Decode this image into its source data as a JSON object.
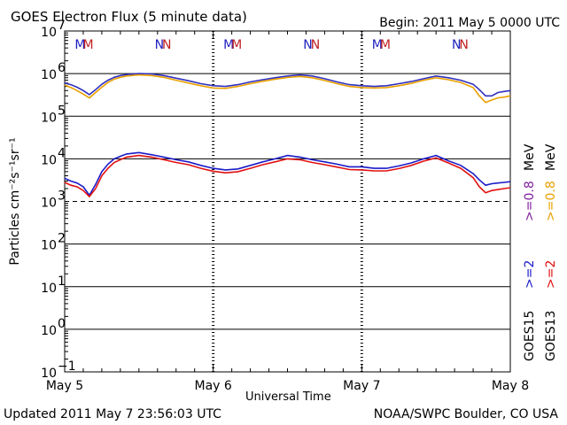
{
  "header": {
    "title": "GOES Electron Flux (5 minute data)",
    "begin": "Begin: 2011 May 5 0000 UTC"
  },
  "footer": {
    "updated": "Updated 2011 May  7 23:56:03 UTC",
    "credit": "NOAA/SWPC Boulder, CO USA"
  },
  "chart_data": {
    "type": "line",
    "title": "GOES Electron Flux (5 minute data)",
    "xlabel": "Universal Time",
    "ylabel": "Particles cm⁻²s⁻¹sr⁻¹",
    "yscale": "log",
    "ylim": [
      0.1,
      10000000
    ],
    "xlim_hours": [
      0,
      72
    ],
    "x_tick_labels": [
      "May 5",
      "May 6",
      "May 7",
      "May 8"
    ],
    "y_ticks": [
      {
        "base": "10",
        "exp": "7"
      },
      {
        "base": "10",
        "exp": "6"
      },
      {
        "base": "10",
        "exp": "5"
      },
      {
        "base": "10",
        "exp": "4"
      },
      {
        "base": "10",
        "exp": "3"
      },
      {
        "base": "10",
        "exp": "2"
      },
      {
        "base": "10",
        "exp": "1"
      },
      {
        "base": "10",
        "exp": "0"
      },
      {
        "base": "10",
        "exp": "−1"
      }
    ],
    "threshold_level": 1000,
    "markers": [
      {
        "label": "M",
        "hour": 2.5,
        "color": "#2020c0"
      },
      {
        "label": "M",
        "hour": 3.8,
        "color": "#c02020"
      },
      {
        "label": "N",
        "hour": 15.3,
        "color": "#2020c0"
      },
      {
        "label": "N",
        "hour": 16.5,
        "color": "#c02020"
      },
      {
        "label": "M",
        "hour": 26.5,
        "color": "#2020c0"
      },
      {
        "label": "M",
        "hour": 27.8,
        "color": "#c02020"
      },
      {
        "label": "N",
        "hour": 39.3,
        "color": "#2020c0"
      },
      {
        "label": "N",
        "hour": 40.5,
        "color": "#c02020"
      },
      {
        "label": "M",
        "hour": 50.5,
        "color": "#2020c0"
      },
      {
        "label": "M",
        "hour": 51.8,
        "color": "#c02020"
      },
      {
        "label": "N",
        "hour": 63.3,
        "color": "#2020c0"
      },
      {
        "label": "N",
        "hour": 64.5,
        "color": "#c02020"
      }
    ],
    "legend": [
      {
        "sat": "GOES15",
        "energy": ">=2",
        "unit": "",
        "color": "#1a1ac8"
      },
      {
        "sat": "",
        "energy": ">=0.8",
        "unit": "MeV",
        "color": "#8020a0"
      },
      {
        "sat": "GOES13",
        "energy": ">=2",
        "unit": "",
        "color": "#e01010"
      },
      {
        "sat": "",
        "energy": ">=0.8",
        "unit": "MeV",
        "color": "#e8a000"
      }
    ],
    "series": [
      {
        "name": "GOES15 >=0.8 MeV",
        "color": "#3030c0",
        "x": [
          0,
          1,
          2,
          3,
          4,
          5,
          6,
          7,
          8,
          9,
          10,
          12,
          14,
          16,
          18,
          20,
          22,
          24,
          26,
          28,
          30,
          32,
          34,
          36,
          38,
          40,
          42,
          44,
          46,
          48,
          50,
          52,
          54,
          56,
          58,
          60,
          62,
          64,
          66,
          67,
          68,
          69,
          70,
          71,
          72
        ],
        "y": [
          600000,
          550000,
          480000,
          400000,
          320000,
          420000,
          560000,
          700000,
          820000,
          900000,
          950000,
          1000000,
          980000,
          900000,
          780000,
          680000,
          580000,
          520000,
          500000,
          550000,
          640000,
          720000,
          800000,
          880000,
          930000,
          880000,
          760000,
          640000,
          550000,
          520000,
          500000,
          520000,
          580000,
          650000,
          760000,
          880000,
          800000,
          700000,
          560000,
          420000,
          300000,
          300000,
          360000,
          380000,
          400000
        ]
      },
      {
        "name": "GOES13 >=0.8 MeV",
        "color": "#e8a000",
        "x": [
          0,
          1,
          2,
          3,
          4,
          5,
          6,
          7,
          8,
          9,
          10,
          12,
          14,
          16,
          18,
          20,
          22,
          24,
          26,
          28,
          30,
          32,
          34,
          36,
          38,
          40,
          42,
          44,
          46,
          48,
          50,
          52,
          54,
          56,
          58,
          60,
          62,
          64,
          66,
          67,
          68,
          69,
          70,
          71,
          72
        ],
        "y": [
          540000,
          470000,
          400000,
          330000,
          270000,
          360000,
          480000,
          620000,
          740000,
          820000,
          880000,
          930000,
          900000,
          820000,
          700000,
          600000,
          520000,
          460000,
          450000,
          500000,
          580000,
          660000,
          740000,
          810000,
          860000,
          800000,
          690000,
          580000,
          500000,
          470000,
          460000,
          470000,
          520000,
          590000,
          700000,
          800000,
          720000,
          620000,
          470000,
          300000,
          210000,
          240000,
          270000,
          280000,
          300000
        ]
      },
      {
        "name": "GOES15 >=2 MeV",
        "color": "#1a1ac8",
        "x": [
          0,
          1,
          2,
          3,
          4,
          5,
          6,
          7,
          8,
          9,
          10,
          12,
          14,
          16,
          18,
          20,
          22,
          24,
          26,
          28,
          30,
          32,
          34,
          36,
          38,
          40,
          42,
          44,
          46,
          48,
          50,
          52,
          54,
          56,
          58,
          60,
          62,
          64,
          66,
          67,
          68,
          69,
          70,
          71,
          72
        ],
        "y": [
          3500,
          3000,
          2700,
          2200,
          1400,
          2500,
          5000,
          7500,
          10000,
          11500,
          13000,
          14000,
          12500,
          11000,
          9500,
          8500,
          7000,
          6000,
          5500,
          5800,
          7000,
          8500,
          10000,
          12000,
          11000,
          9500,
          8500,
          7500,
          6500,
          6500,
          6000,
          6000,
          6800,
          8000,
          10000,
          12000,
          9000,
          7000,
          4500,
          3200,
          2400,
          2600,
          2700,
          2800,
          2900
        ]
      },
      {
        "name": "GOES13 >=2 MeV",
        "color": "#e01010",
        "x": [
          0,
          1,
          2,
          3,
          4,
          5,
          6,
          7,
          8,
          9,
          10,
          12,
          14,
          16,
          18,
          20,
          22,
          24,
          26,
          28,
          30,
          32,
          34,
          36,
          38,
          40,
          42,
          44,
          46,
          48,
          50,
          52,
          54,
          56,
          58,
          60,
          62,
          64,
          66,
          67,
          68,
          69,
          70,
          71,
          72
        ],
        "y": [
          2800,
          2400,
          2200,
          1800,
          1300,
          2000,
          4000,
          6000,
          8200,
          9500,
          11000,
          12000,
          11000,
          9500,
          8200,
          7300,
          6000,
          5100,
          4700,
          5000,
          6000,
          7300,
          8500,
          10000,
          9500,
          8200,
          7300,
          6400,
          5600,
          5500,
          5200,
          5200,
          5900,
          7000,
          8800,
          10500,
          8000,
          6000,
          3600,
          2200,
          1600,
          1800,
          1900,
          2000,
          2100
        ]
      }
    ]
  }
}
